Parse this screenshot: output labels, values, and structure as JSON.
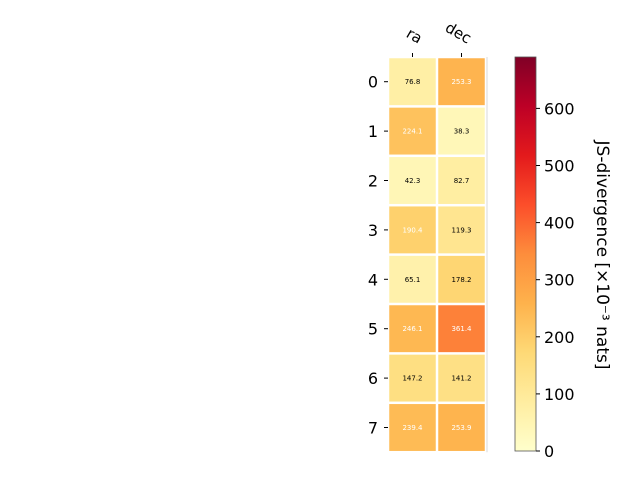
{
  "chart_data": {
    "type": "heatmap",
    "columns": [
      "ra",
      "dec"
    ],
    "rows": [
      "0",
      "1",
      "2",
      "3",
      "4",
      "5",
      "6",
      "7"
    ],
    "values": [
      [
        76.8,
        253.3
      ],
      [
        224.1,
        38.3
      ],
      [
        42.3,
        82.7
      ],
      [
        190.4,
        119.3
      ],
      [
        65.1,
        178.2
      ],
      [
        246.1,
        361.4
      ],
      [
        147.2,
        141.2
      ],
      [
        239.4,
        253.9
      ]
    ],
    "cell_labels": [
      [
        "76.8",
        "253.3"
      ],
      [
        "224.1",
        "38.3"
      ],
      [
        "42.3",
        "82.7"
      ],
      [
        "190.4",
        "119.3"
      ],
      [
        "65.1",
        "178.2"
      ],
      [
        "246.1",
        "361.4"
      ],
      [
        "147.2",
        "141.2"
      ],
      [
        "239.4",
        "253.9"
      ]
    ],
    "colorbar": {
      "label": "JS-divergence [×10⁻³ nats]",
      "range": [
        0,
        690
      ],
      "ticks": [
        "0",
        "100",
        "200",
        "300",
        "400",
        "500",
        "600"
      ],
      "colormap": "YlOrRd",
      "colors": [
        "#ffffcc",
        "#ffeda0",
        "#fed976",
        "#feb24c",
        "#fd8d3c",
        "#fc4e2a",
        "#e31a1c",
        "#bd0026",
        "#800026"
      ]
    },
    "label_colors": {
      "dark": "#000000",
      "light": "#ffffff"
    },
    "xlabel": "",
    "ylabel": "",
    "title": ""
  }
}
